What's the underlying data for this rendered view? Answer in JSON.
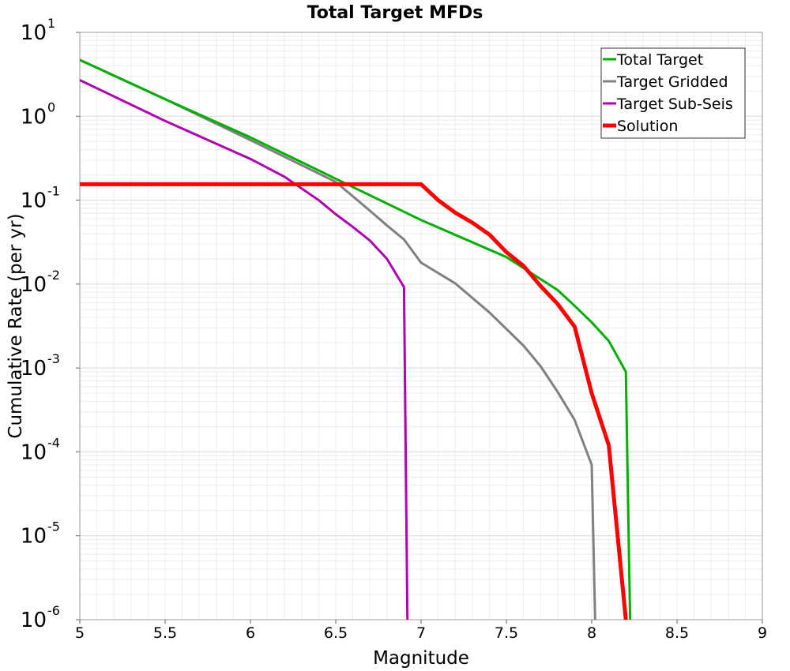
{
  "chart_data": {
    "type": "line",
    "title": "Total Target MFDs",
    "xlabel": "Magnitude",
    "ylabel": "Cumulative Rate (per yr)",
    "xlim": [
      5,
      9
    ],
    "ylim": [
      1e-06,
      10
    ],
    "yscale": "log",
    "grid": true,
    "legend_position": "top-right",
    "x_ticks": [
      "5",
      "5.5",
      "6",
      "6.5",
      "7",
      "7.5",
      "8",
      "8.5",
      "9"
    ],
    "y_ticks": [
      {
        "base": "10",
        "exp": "1"
      },
      {
        "base": "10",
        "exp": "0"
      },
      {
        "base": "10",
        "exp": "-1"
      },
      {
        "base": "10",
        "exp": "-2"
      },
      {
        "base": "10",
        "exp": "-3"
      },
      {
        "base": "10",
        "exp": "-4"
      },
      {
        "base": "10",
        "exp": "-5"
      },
      {
        "base": "10",
        "exp": "-6"
      }
    ],
    "series": [
      {
        "name": "Total Target",
        "color": "#00b000",
        "width": 3,
        "points": [
          [
            5.0,
            4.7
          ],
          [
            5.5,
            1.6
          ],
          [
            6.0,
            0.56
          ],
          [
            6.5,
            0.18
          ],
          [
            7.0,
            0.058
          ],
          [
            7.5,
            0.021
          ],
          [
            7.8,
            0.0085
          ],
          [
            7.9,
            0.0055
          ],
          [
            8.0,
            0.0035
          ],
          [
            8.1,
            0.0021
          ],
          [
            8.2,
            0.0009
          ],
          [
            8.225,
            1e-06
          ]
        ]
      },
      {
        "name": "Target Gridded",
        "color": "#808080",
        "width": 3,
        "points": [
          [
            5.0,
            4.7
          ],
          [
            5.5,
            1.6
          ],
          [
            6.0,
            0.52
          ],
          [
            6.5,
            0.165
          ],
          [
            6.7,
            0.075
          ],
          [
            6.8,
            0.05
          ],
          [
            6.9,
            0.034
          ],
          [
            7.0,
            0.018
          ],
          [
            7.2,
            0.0102
          ],
          [
            7.4,
            0.0046
          ],
          [
            7.6,
            0.00185
          ],
          [
            7.7,
            0.00105
          ],
          [
            7.8,
            0.00052
          ],
          [
            7.9,
            0.00024
          ],
          [
            8.0,
            7e-05
          ],
          [
            8.02,
            1e-06
          ]
        ]
      },
      {
        "name": "Target Sub-Seis",
        "color": "#b000b0",
        "width": 3,
        "points": [
          [
            5.0,
            2.7
          ],
          [
            5.5,
            0.88
          ],
          [
            6.0,
            0.31
          ],
          [
            6.2,
            0.19
          ],
          [
            6.4,
            0.1
          ],
          [
            6.5,
            0.068
          ],
          [
            6.6,
            0.048
          ],
          [
            6.7,
            0.033
          ],
          [
            6.8,
            0.02
          ],
          [
            6.9,
            0.0092
          ],
          [
            6.92,
            1e-06
          ]
        ]
      },
      {
        "name": "Solution",
        "color": "#ff0000",
        "width": 5,
        "points": [
          [
            5.0,
            0.155
          ],
          [
            7.0,
            0.155
          ],
          [
            7.1,
            0.1
          ],
          [
            7.2,
            0.071
          ],
          [
            7.3,
            0.054
          ],
          [
            7.4,
            0.039
          ],
          [
            7.5,
            0.024
          ],
          [
            7.6,
            0.0165
          ],
          [
            7.7,
            0.0095
          ],
          [
            7.8,
            0.0058
          ],
          [
            7.9,
            0.0031
          ],
          [
            8.0,
            0.0005
          ],
          [
            8.1,
            0.00012
          ],
          [
            8.2,
            1e-06
          ]
        ]
      }
    ]
  }
}
